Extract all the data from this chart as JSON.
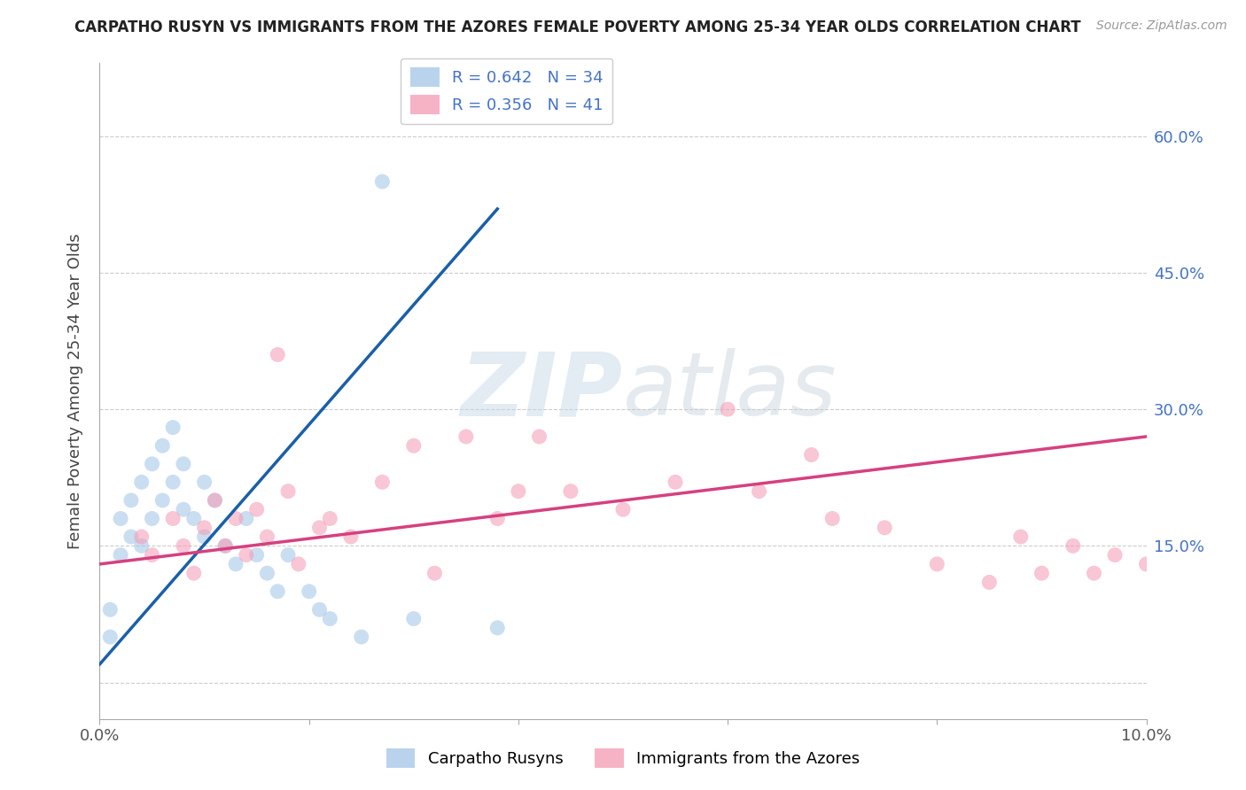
{
  "title": "CARPATHO RUSYN VS IMMIGRANTS FROM THE AZORES FEMALE POVERTY AMONG 25-34 YEAR OLDS CORRELATION CHART",
  "source": "Source: ZipAtlas.com",
  "ylabel": "Female Poverty Among 25-34 Year Olds",
  "xlim": [
    0,
    0.1
  ],
  "ylim": [
    -0.04,
    0.68
  ],
  "xticks": [
    0.0,
    0.02,
    0.04,
    0.06,
    0.08,
    0.1
  ],
  "xticklabels": [
    "0.0%",
    "",
    "",
    "",
    "",
    "10.0%"
  ],
  "yticks": [
    0.0,
    0.15,
    0.3,
    0.45,
    0.6
  ],
  "yticklabels": [
    "",
    "15.0%",
    "30.0%",
    "45.0%",
    "60.0%"
  ],
  "blue_R": 0.642,
  "blue_N": 34,
  "pink_R": 0.356,
  "pink_N": 41,
  "blue_color": "#a8c8e8",
  "pink_color": "#f4a0b8",
  "blue_line_color": "#1a5fa8",
  "pink_line_color": "#d64080",
  "watermark_zip": "ZIP",
  "watermark_atlas": "atlas",
  "legend_label_blue": "Carpatho Rusyns",
  "legend_label_pink": "Immigrants from the Azores",
  "blue_scatter_x": [
    0.001,
    0.001,
    0.002,
    0.002,
    0.003,
    0.003,
    0.004,
    0.004,
    0.005,
    0.005,
    0.006,
    0.006,
    0.007,
    0.007,
    0.008,
    0.008,
    0.009,
    0.01,
    0.01,
    0.011,
    0.012,
    0.013,
    0.014,
    0.015,
    0.016,
    0.017,
    0.018,
    0.02,
    0.021,
    0.022,
    0.025,
    0.027,
    0.03,
    0.038
  ],
  "blue_scatter_y": [
    0.05,
    0.08,
    0.14,
    0.18,
    0.16,
    0.2,
    0.15,
    0.22,
    0.18,
    0.24,
    0.2,
    0.26,
    0.22,
    0.28,
    0.19,
    0.24,
    0.18,
    0.22,
    0.16,
    0.2,
    0.15,
    0.13,
    0.18,
    0.14,
    0.12,
    0.1,
    0.14,
    0.1,
    0.08,
    0.07,
    0.05,
    0.55,
    0.07,
    0.06
  ],
  "pink_scatter_x": [
    0.004,
    0.005,
    0.007,
    0.008,
    0.009,
    0.01,
    0.011,
    0.012,
    0.013,
    0.014,
    0.015,
    0.016,
    0.017,
    0.018,
    0.019,
    0.021,
    0.022,
    0.024,
    0.027,
    0.03,
    0.032,
    0.035,
    0.038,
    0.04,
    0.042,
    0.045,
    0.05,
    0.055,
    0.06,
    0.063,
    0.068,
    0.07,
    0.075,
    0.08,
    0.085,
    0.088,
    0.09,
    0.093,
    0.095,
    0.097,
    0.1
  ],
  "pink_scatter_y": [
    0.16,
    0.14,
    0.18,
    0.15,
    0.12,
    0.17,
    0.2,
    0.15,
    0.18,
    0.14,
    0.19,
    0.16,
    0.36,
    0.21,
    0.13,
    0.17,
    0.18,
    0.16,
    0.22,
    0.26,
    0.12,
    0.27,
    0.18,
    0.21,
    0.27,
    0.21,
    0.19,
    0.22,
    0.3,
    0.21,
    0.25,
    0.18,
    0.17,
    0.13,
    0.11,
    0.16,
    0.12,
    0.15,
    0.12,
    0.14,
    0.13
  ],
  "blue_line_x": [
    0.0,
    0.038
  ],
  "blue_line_y": [
    0.02,
    0.52
  ],
  "pink_line_x": [
    0.0,
    0.1
  ],
  "pink_line_y": [
    0.13,
    0.27
  ]
}
